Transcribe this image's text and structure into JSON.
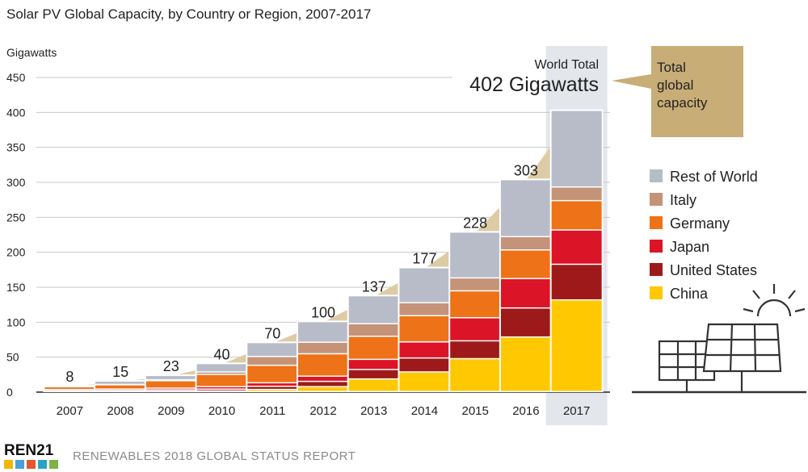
{
  "chart_data": {
    "type": "bar",
    "stacked": true,
    "title": "Solar PV Global Capacity, by Country or Region, 2007-2017",
    "ylabel": "Gigawatts",
    "xlabel": "",
    "ylim": [
      0,
      450
    ],
    "yticks": [
      0,
      50,
      100,
      150,
      200,
      250,
      300,
      350,
      400,
      450
    ],
    "grid": true,
    "legend_position": "right",
    "categories": [
      "2007",
      "2008",
      "2009",
      "2010",
      "2011",
      "2012",
      "2013",
      "2014",
      "2015",
      "2016",
      "2017"
    ],
    "totals": [
      8,
      15,
      23,
      40,
      70,
      100,
      137,
      177,
      228,
      303,
      402
    ],
    "total_labels": [
      "8",
      "15",
      "23",
      "40",
      "70",
      "100",
      "137",
      "177",
      "228",
      "303",
      ""
    ],
    "series": [
      {
        "name": "China",
        "color": "#ffc800",
        "values": [
          0.1,
          0.3,
          0.4,
          0.9,
          3,
          7,
          18,
          28,
          47,
          78,
          131
        ]
      },
      {
        "name": "United States",
        "color": "#9e1a1a",
        "values": [
          0.8,
          1.2,
          2,
          2.6,
          4.5,
          7.5,
          13.5,
          20,
          25.5,
          41.5,
          51
        ]
      },
      {
        "name": "Japan",
        "color": "#dc1428",
        "values": [
          1.9,
          2.1,
          2.5,
          3.5,
          5,
          7.5,
          14.5,
          23,
          33,
          42,
          49
        ]
      },
      {
        "name": "Germany",
        "color": "#ee7217",
        "values": [
          4,
          6,
          10.5,
          17.5,
          25,
          32,
          33,
          37.5,
          38.5,
          41,
          42
        ]
      },
      {
        "name": "Italy",
        "color": "#c49378",
        "values": [
          0.4,
          0.5,
          1.4,
          3.5,
          12.5,
          16.5,
          18,
          18.5,
          18.5,
          19,
          19.5
        ]
      },
      {
        "name": "Rest of World",
        "color": "#b8bcc8",
        "values": [
          0.8,
          4.9,
          6.2,
          12,
          20,
          29.5,
          40,
          50,
          65.5,
          81.5,
          109.5
        ]
      }
    ],
    "annotations": {
      "world_total_label": "World Total",
      "world_total_value": "402 Gigawatts",
      "callout_lines": [
        "Total",
        "global",
        "capacity"
      ],
      "highlight_category": "2017",
      "area_color": "#dccba4"
    }
  },
  "footer": {
    "logo_text": "REN21",
    "report_text": "RENEWABLES 2018 GLOBAL STATUS REPORT"
  },
  "colors": {
    "highlight": "#e3e6ea",
    "callout": "#c9ad76",
    "axis": "#222222",
    "grid": "#c8c8c8",
    "footer_text": "#8a8a8a",
    "icon_stroke": "#333333"
  },
  "icons": [
    "solar-panel-icon",
    "sun-icon",
    "ren21-logo"
  ]
}
